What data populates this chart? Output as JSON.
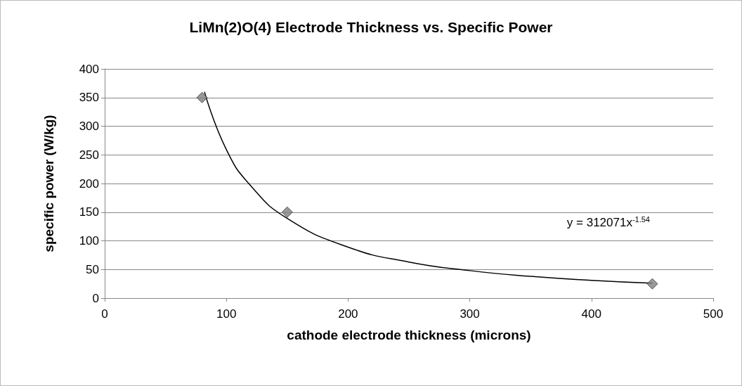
{
  "chart_data": {
    "type": "scatter",
    "title": "LiMn(2)O(4) Electrode Thickness vs. Specific Power",
    "xlabel": "cathode electrode thickness (microns)",
    "ylabel": "specific power (W/kg)",
    "xlim": [
      0,
      500
    ],
    "xticks": [
      0,
      100,
      200,
      300,
      400,
      500
    ],
    "ylim": [
      0,
      400
    ],
    "yticks": [
      0,
      50,
      100,
      150,
      200,
      250,
      300,
      350,
      400
    ],
    "grid": "y",
    "series": [
      {
        "color": "#808080",
        "marker": "diamond",
        "x": [
          80,
          150,
          450
        ],
        "values": [
          350,
          150,
          25
        ]
      },
      {
        "type": "line",
        "color": "#000000",
        "marker": "none",
        "line_style": "solid",
        "x": [
          82,
          100,
          120,
          150,
          200,
          250,
          300,
          350,
          400,
          450
        ],
        "values": [
          360,
          259,
          196,
          139,
          89,
          63,
          48,
          38,
          31,
          26
        ]
      }
    ],
    "annotations": [
      "y = 312071x$^{-1.54}$"
    ]
  }
}
